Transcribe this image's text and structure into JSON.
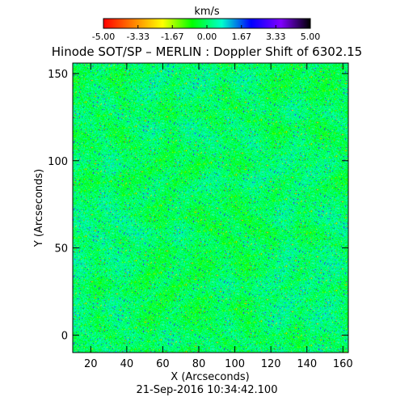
{
  "chart_data": {
    "type": "heatmap",
    "title": "Hinode SOT/SP – MERLIN : Doppler Shift of 6302.15",
    "xlabel": "X (Arcseconds)",
    "ylabel": "Y (Arcseconds)",
    "footer": "21-Sep-2016 10:34:42.100",
    "xlim": [
      10,
      163
    ],
    "ylim": [
      -10,
      156
    ],
    "xticks": [
      20,
      40,
      60,
      80,
      100,
      120,
      140,
      160
    ],
    "yticks": [
      0,
      50,
      100,
      150
    ],
    "colorbar": {
      "label": "km/s",
      "range": [
        -5.0,
        5.0
      ],
      "ticks": [
        "-5.00",
        "-3.33",
        "-1.67",
        "0.00",
        "1.67",
        "3.33",
        "5.00"
      ],
      "tick_values": [
        -5.0,
        -3.33,
        -1.67,
        0.0,
        1.67,
        3.33,
        5.0
      ],
      "colors": [
        "#ff0000",
        "#ff8000",
        "#ffff00",
        "#00ff00",
        "#00ffcc",
        "#0000ff",
        "#8000ff",
        "#000000"
      ]
    },
    "field_description": "granulation velocity pattern, mostly near 0 km/s (green/cyan) with scattered red/yellow and blue speckles",
    "grid": false,
    "legend": "colorbar-top"
  }
}
